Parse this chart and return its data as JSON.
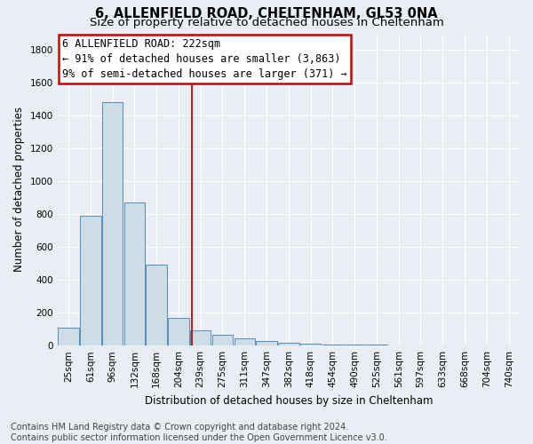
{
  "title_line1": "6, ALLENFIELD ROAD, CHELTENHAM, GL53 0NA",
  "title_line2": "Size of property relative to detached houses in Cheltenham",
  "xlabel": "Distribution of detached houses by size in Cheltenham",
  "ylabel": "Number of detached properties",
  "categories": [
    "25sqm",
    "61sqm",
    "96sqm",
    "132sqm",
    "168sqm",
    "204sqm",
    "239sqm",
    "275sqm",
    "311sqm",
    "347sqm",
    "382sqm",
    "418sqm",
    "454sqm",
    "490sqm",
    "525sqm",
    "561sqm",
    "597sqm",
    "633sqm",
    "668sqm",
    "704sqm",
    "740sqm"
  ],
  "values": [
    110,
    790,
    1480,
    870,
    490,
    170,
    95,
    65,
    45,
    30,
    15,
    10,
    8,
    5,
    4,
    3,
    2,
    2,
    1,
    1,
    1
  ],
  "bar_color": "#ccdde8",
  "bar_edge_color": "#5a8db5",
  "vertical_line_x": 5.62,
  "annotation_text_line1": "6 ALLENFIELD ROAD: 222sqm",
  "annotation_text_line2": "← 91% of detached houses are smaller (3,863)",
  "annotation_text_line3": "9% of semi-detached houses are larger (371) →",
  "annotation_box_facecolor": "white",
  "annotation_box_edgecolor": "#cc0000",
  "vertical_line_color": "#cc0000",
  "ylim": [
    0,
    1900
  ],
  "yticks": [
    0,
    200,
    400,
    600,
    800,
    1000,
    1200,
    1400,
    1600,
    1800
  ],
  "background_color": "#e8eef4",
  "plot_bg_color": "#e8eef4",
  "grid_color": "white",
  "title_fontsize": 10.5,
  "subtitle_fontsize": 9.5,
  "tick_fontsize": 7.5,
  "ylabel_fontsize": 8.5,
  "xlabel_fontsize": 8.5,
  "annotation_fontsize": 8.5,
  "footer_fontsize": 7.0
}
